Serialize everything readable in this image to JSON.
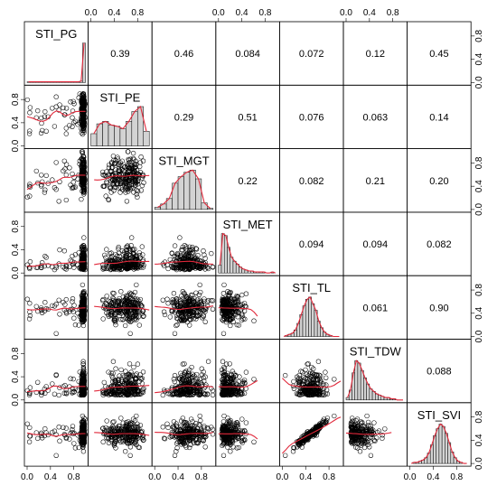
{
  "chart_data": {
    "type": "scatter-matrix",
    "variables": [
      "STI_PG",
      "STI_PE",
      "STI_MGT",
      "STI_MET",
      "STI_TL",
      "STI_TDW",
      "STI_SVI"
    ],
    "axis_range": [
      0,
      1
    ],
    "tick_values": [
      0.0,
      0.4,
      0.8
    ],
    "tick_labels": [
      "0.0",
      "0.4",
      "0.8"
    ],
    "correlations": [
      {
        "row": "STI_PG",
        "col": "STI_PE",
        "value": "0.39"
      },
      {
        "row": "STI_PG",
        "col": "STI_MGT",
        "value": "0.46"
      },
      {
        "row": "STI_PG",
        "col": "STI_MET",
        "value": "0.084"
      },
      {
        "row": "STI_PG",
        "col": "STI_TL",
        "value": "0.072"
      },
      {
        "row": "STI_PG",
        "col": "STI_TDW",
        "value": "0.12"
      },
      {
        "row": "STI_PG",
        "col": "STI_SVI",
        "value": "0.45"
      },
      {
        "row": "STI_PE",
        "col": "STI_MGT",
        "value": "0.29"
      },
      {
        "row": "STI_PE",
        "col": "STI_MET",
        "value": "0.51"
      },
      {
        "row": "STI_PE",
        "col": "STI_TL",
        "value": "0.076"
      },
      {
        "row": "STI_PE",
        "col": "STI_TDW",
        "value": "0.063"
      },
      {
        "row": "STI_PE",
        "col": "STI_SVI",
        "value": "0.14"
      },
      {
        "row": "STI_MGT",
        "col": "STI_MET",
        "value": "0.22"
      },
      {
        "row": "STI_MGT",
        "col": "STI_TL",
        "value": "0.082"
      },
      {
        "row": "STI_MGT",
        "col": "STI_TDW",
        "value": "0.21"
      },
      {
        "row": "STI_MGT",
        "col": "STI_SVI",
        "value": "0.20"
      },
      {
        "row": "STI_MET",
        "col": "STI_TL",
        "value": "0.094"
      },
      {
        "row": "STI_MET",
        "col": "STI_TDW",
        "value": "0.094"
      },
      {
        "row": "STI_MET",
        "col": "STI_SVI",
        "value": "0.082"
      },
      {
        "row": "STI_TL",
        "col": "STI_TDW",
        "value": "0.061"
      },
      {
        "row": "STI_TL",
        "col": "STI_SVI",
        "value": "0.90"
      },
      {
        "row": "STI_TDW",
        "col": "STI_SVI",
        "value": "0.088"
      }
    ],
    "histograms": [
      {
        "variable": "STI_PG",
        "bins": [
          0.0,
          0.05,
          0.1,
          0.15,
          0.2,
          0.25,
          0.3,
          0.35,
          0.4,
          0.45,
          0.5,
          0.55,
          0.6,
          0.65,
          0.7,
          0.75,
          0.8,
          0.85,
          0.9,
          0.95,
          1.0
        ],
        "counts": [
          1,
          1,
          1,
          1,
          1,
          1,
          1,
          1,
          1,
          1,
          1,
          1,
          1,
          1,
          1,
          1,
          1,
          1,
          2,
          60
        ]
      },
      {
        "variable": "STI_PE",
        "bins": [
          0.0,
          0.1,
          0.2,
          0.3,
          0.4,
          0.5,
          0.6,
          0.7,
          0.8,
          0.9,
          1.0
        ],
        "counts": [
          10,
          18,
          20,
          17,
          16,
          14,
          20,
          28,
          32,
          12
        ]
      },
      {
        "variable": "STI_MGT",
        "bins": [
          0.0,
          0.1,
          0.2,
          0.3,
          0.4,
          0.5,
          0.6,
          0.7,
          0.8,
          0.9,
          1.0
        ],
        "counts": [
          2,
          5,
          10,
          24,
          30,
          34,
          36,
          28,
          6,
          1
        ]
      },
      {
        "variable": "STI_MET",
        "bins": [
          0.0,
          0.05,
          0.1,
          0.15,
          0.2,
          0.25,
          0.3,
          0.35,
          0.4,
          0.45,
          0.5,
          0.55,
          0.6,
          0.65,
          0.7,
          0.75,
          0.8,
          0.85,
          0.9,
          0.95,
          1.0
        ],
        "counts": [
          8,
          40,
          38,
          26,
          16,
          12,
          9,
          6,
          4,
          3,
          2,
          2,
          1,
          1,
          1,
          1,
          0,
          0,
          1,
          0
        ]
      },
      {
        "variable": "STI_TL",
        "bins": [
          0.0,
          0.05,
          0.1,
          0.15,
          0.2,
          0.25,
          0.3,
          0.35,
          0.4,
          0.45,
          0.5,
          0.55,
          0.6,
          0.65,
          0.7,
          0.75,
          0.8,
          0.85,
          0.9,
          0.95,
          1.0
        ],
        "counts": [
          0,
          1,
          2,
          3,
          6,
          12,
          20,
          28,
          34,
          36,
          30,
          24,
          14,
          8,
          4,
          2,
          1,
          0,
          0,
          0
        ]
      },
      {
        "variable": "STI_TDW",
        "bins": [
          0.0,
          0.05,
          0.1,
          0.15,
          0.2,
          0.25,
          0.3,
          0.35,
          0.4,
          0.45,
          0.5,
          0.55,
          0.6,
          0.65,
          0.7,
          0.75,
          0.8,
          0.85,
          0.9,
          0.95,
          1.0
        ],
        "counts": [
          2,
          8,
          22,
          32,
          30,
          24,
          18,
          13,
          9,
          7,
          5,
          4,
          3,
          2,
          2,
          1,
          1,
          0,
          0,
          0
        ]
      },
      {
        "variable": "STI_SVI",
        "bins": [
          0.0,
          0.05,
          0.1,
          0.15,
          0.2,
          0.25,
          0.3,
          0.35,
          0.4,
          0.45,
          0.5,
          0.55,
          0.6,
          0.65,
          0.7,
          0.75,
          0.8,
          0.85,
          0.9,
          0.95,
          1.0
        ],
        "counts": [
          0,
          1,
          1,
          2,
          3,
          5,
          9,
          16,
          24,
          30,
          34,
          32,
          26,
          18,
          10,
          5,
          2,
          1,
          0,
          0
        ]
      }
    ],
    "grid": false,
    "legend": "none"
  }
}
